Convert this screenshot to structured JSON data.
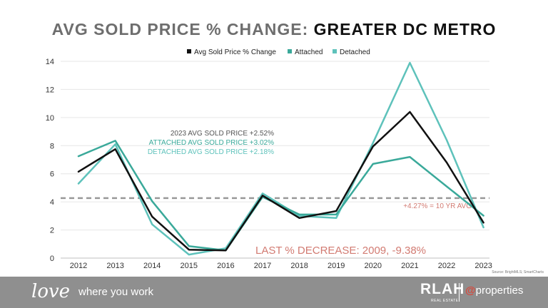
{
  "title": {
    "prefix": "AVG SOLD PRICE % CHANGE:",
    "region": "GREATER DC METRO"
  },
  "chart_data": {
    "type": "line",
    "title": "AVG SOLD PRICE % CHANGE: GREATER DC METRO",
    "x": [
      "2012",
      "2013",
      "2014",
      "2015",
      "2016",
      "2017",
      "2018",
      "2019",
      "2020",
      "2021",
      "2022",
      "2023"
    ],
    "ylim": [
      0,
      14
    ],
    "yticks": [
      "0",
      "2",
      "4",
      "6",
      "8",
      "10",
      "12",
      "14"
    ],
    "grid": true,
    "legend_position": "top-center",
    "series": [
      {
        "name": "Avg Sold Price % Change",
        "color": "#111111",
        "values": [
          6.15,
          7.75,
          2.95,
          0.6,
          0.55,
          4.45,
          2.85,
          3.35,
          7.95,
          10.4,
          6.8,
          2.52
        ]
      },
      {
        "name": "Attached",
        "color": "#3aa99a",
        "values": [
          7.25,
          8.35,
          4.05,
          0.85,
          0.55,
          4.35,
          3.1,
          3.1,
          6.7,
          7.2,
          5.1,
          3.02
        ]
      },
      {
        "name": "Detached",
        "color": "#5ec2bb",
        "values": [
          5.3,
          8.1,
          2.4,
          0.25,
          0.7,
          4.6,
          3.0,
          2.85,
          8.2,
          13.9,
          8.4,
          2.18
        ]
      }
    ],
    "reference_line": {
      "value": 4.27,
      "label": "+4.27% = 10 YR AVG",
      "color": "#999999"
    },
    "annotations": {
      "summary": [
        {
          "text": "2023 AVG SOLD PRICE +2.52%",
          "color": "#555555"
        },
        {
          "text": "ATTACHED AVG SOLD PRICE +3.02%",
          "color": "#3aa99a"
        },
        {
          "text": "DETACHED AVG SOLD PRICE +2.18%",
          "color": "#5ec2bb"
        }
      ],
      "last_decrease": "LAST % DECREASE: 2009, -9.38%",
      "last_decrease_color": "#d27b72",
      "source": "Source: BrightMLS; SmartCharts"
    }
  },
  "footer": {
    "love": "love",
    "tagline": "where you work",
    "rlah": "RLAH",
    "rlah_sub": "REAL ESTATE",
    "properties_at": "@",
    "properties": "properties"
  }
}
